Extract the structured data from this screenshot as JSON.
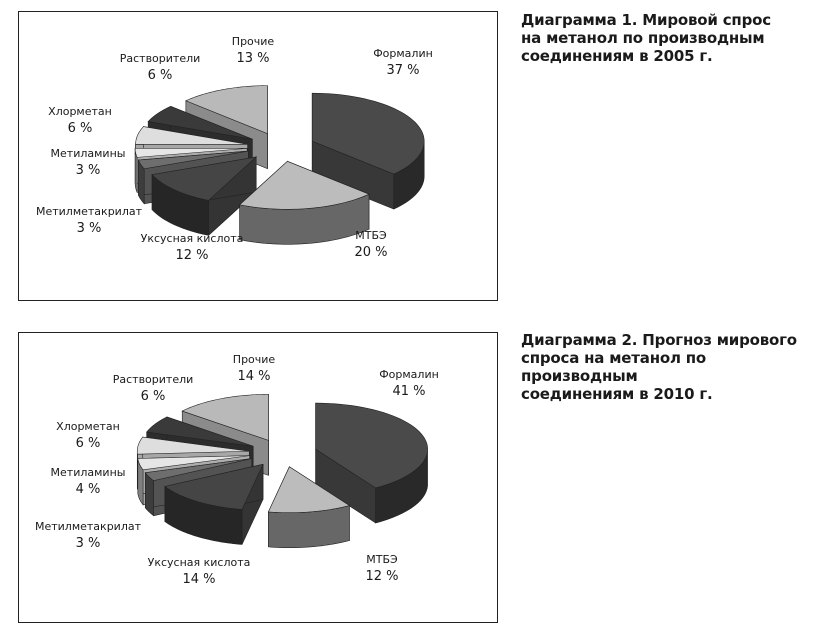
{
  "chart_data": [
    {
      "type": "pie",
      "title": "Диаграмма 1. Мировой спрос на метанол по производным соединениям в 2005 г.",
      "title_lines": [
        "Диаграмма 1. Мировой спрос",
        "на метанол по производным",
        "соединениям в 2005 г."
      ],
      "exploded": true,
      "three_d": true,
      "slices": [
        {
          "name": "Формалин",
          "value": 37,
          "label": "37 %",
          "color": "#4a4a4a"
        },
        {
          "name": "МТБЭ",
          "value": 20,
          "label": "20 %",
          "color": "#bcbcbc"
        },
        {
          "name": "Уксусная кислота",
          "value": 12,
          "label": "12 %",
          "color": "#454545"
        },
        {
          "name": "Метилметакрилат",
          "value": 3,
          "label": "3 %",
          "color": "#6e6e6e"
        },
        {
          "name": "Метиламины",
          "value": 3,
          "label": "3 %",
          "color": "#e6e6e6"
        },
        {
          "name": "Хлорметан",
          "value": 6,
          "label": "6 %",
          "color": "#dedede"
        },
        {
          "name": "Растворители",
          "value": 6,
          "label": "6 %",
          "color": "#3a3a3a"
        },
        {
          "name": "Прочие",
          "value": 13,
          "label": "13 %",
          "color": "#b9b9b9"
        }
      ]
    },
    {
      "type": "pie",
      "title": "Диаграмма 2. Прогноз мирового спроса на метанол по производным соединениям в 2010 г.",
      "title_lines": [
        "Диаграмма 2. Прогноз мирового",
        "спроса на метанол по производным",
        "соединениям в 2010 г."
      ],
      "exploded": true,
      "three_d": true,
      "slices": [
        {
          "name": "Формалин",
          "value": 41,
          "label": "41 %",
          "color": "#4a4a4a"
        },
        {
          "name": "МТБЭ",
          "value": 12,
          "label": "12 %",
          "color": "#bcbcbc"
        },
        {
          "name": "Уксусная кислота",
          "value": 14,
          "label": "14 %",
          "color": "#454545"
        },
        {
          "name": "Метилметакрилат",
          "value": 3,
          "label": "3 %",
          "color": "#6e6e6e"
        },
        {
          "name": "Метиламины",
          "value": 4,
          "label": "4 %",
          "color": "#e6e6e6"
        },
        {
          "name": "Хлорметан",
          "value": 6,
          "label": "6 %",
          "color": "#dedede"
        },
        {
          "name": "Растворители",
          "value": 6,
          "label": "6 %",
          "color": "#3a3a3a"
        },
        {
          "name": "Прочие",
          "value": 14,
          "label": "14 %",
          "color": "#b9b9b9"
        }
      ]
    }
  ]
}
